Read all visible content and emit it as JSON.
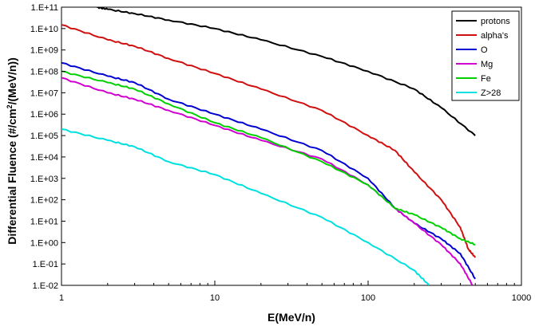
{
  "chart_data": {
    "type": "line",
    "xlabel": "E(MeV/n)",
    "ylabel": "Differential Fluence (#/cm2/(MeV/n))",
    "ylabel_parts": [
      "Differential Fluence (#/cm",
      "2",
      "/(MeV/n))"
    ],
    "x_scale": "log",
    "y_scale": "log",
    "xlim": [
      1,
      1000
    ],
    "ylim": [
      0.01,
      100000000000.0
    ],
    "x_ticks": [
      1,
      10,
      100,
      1000
    ],
    "x_tick_labels": [
      "1",
      "10",
      "100",
      "1000"
    ],
    "y_ticks": [
      100000000000.0,
      10000000000.0,
      1000000000.0,
      100000000.0,
      10000000.0,
      1000000.0,
      100000.0,
      10000.0,
      1000.0,
      100.0,
      10.0,
      1.0,
      0.1,
      0.01
    ],
    "y_tick_labels": [
      "1.E+11",
      "1.E+10",
      "1.E+09",
      "1.E+08",
      "1.E+07",
      "1.E+06",
      "1.E+05",
      "1.E+04",
      "1.E+03",
      "1.E+02",
      "1.E+01",
      "1.E+00",
      "1.E-01",
      "1.E-02"
    ],
    "grid": false,
    "legend_position": "top-right",
    "series": [
      {
        "name": "protons",
        "color": "#000000",
        "x": [
          1.7,
          2,
          3,
          5,
          10,
          20,
          50,
          100,
          200,
          300,
          500
        ],
        "y": [
          100000000000.0,
          80000000000.0,
          50000000000.0,
          25000000000.0,
          10000000000.0,
          3000000000.0,
          500000000.0,
          100000000.0,
          15000000.0,
          2000000.0,
          100000.0
        ]
      },
      {
        "name": "alpha's",
        "color": "#d01010",
        "x": [
          1,
          2,
          3,
          5,
          10,
          20,
          50,
          100,
          150,
          200,
          300,
          400,
          450,
          500
        ],
        "y": [
          15000000000.0,
          3000000000.0,
          1500000000.0,
          400000000.0,
          80000000.0,
          15000000.0,
          1500000.0,
          100000.0,
          20000.0,
          2000.0,
          100.0,
          5.0,
          0.5,
          0.2
        ]
      },
      {
        "name": "O",
        "color": "#0000d0",
        "x": [
          1,
          2,
          3,
          5,
          10,
          20,
          50,
          100,
          150,
          200,
          300,
          400,
          500
        ],
        "y": [
          250000000.0,
          60000000.0,
          30000000.0,
          5000000.0,
          1000000.0,
          200000.0,
          20000.0,
          1000.0,
          40,
          8,
          1.5,
          0.3,
          0.02
        ]
      },
      {
        "name": "Mg",
        "color": "#d000d0",
        "x": [
          1,
          2,
          3,
          5,
          10,
          20,
          50,
          100,
          150,
          200,
          300,
          400,
          480
        ],
        "y": [
          50000000.0,
          10000000.0,
          5000000.0,
          1500000.0,
          300000.0,
          60000.0,
          8000.0,
          500.0,
          40,
          8,
          0.8,
          0.1,
          0.01
        ]
      },
      {
        "name": "Fe",
        "color": "#00d000",
        "x": [
          1,
          2,
          3,
          5,
          10,
          20,
          50,
          100,
          150,
          200,
          300,
          400,
          500
        ],
        "y": [
          100000000.0,
          30000000.0,
          15000000.0,
          3000000.0,
          400000.0,
          80000.0,
          6000.0,
          500.0,
          40,
          20,
          5,
          1.5,
          0.8
        ]
      },
      {
        "name": "Z>28",
        "color": "#00e0e0",
        "x": [
          1,
          2,
          3,
          5,
          10,
          20,
          50,
          100,
          200,
          250
        ],
        "y": [
          200000.0,
          60000.0,
          30000.0,
          6000.0,
          1500.0,
          200.0,
          15,
          1.0,
          0.05,
          0.01
        ]
      }
    ]
  }
}
